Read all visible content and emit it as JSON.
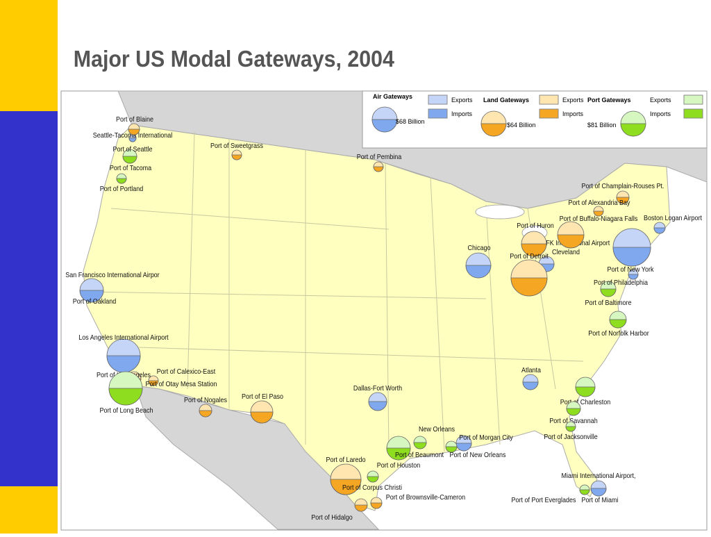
{
  "title": "Major US Modal Gateways, 2004",
  "legend": {
    "groups": [
      {
        "title": "Air Gateways",
        "total": "$68 Billion",
        "exports_label": "Exports",
        "imports_label": "Imports",
        "export_color": "#c5d5f7",
        "import_color": "#7fa8ef",
        "gateways": [
          "Seattle-Tacoma International",
          "Boston Logan Airport",
          "JFK International Airport",
          "Cleveland",
          "Chicago",
          "San Francisco International Airpor",
          "Los Angeles International Airport",
          "Dallas-Fort Worth",
          "Atlanta",
          "Port of Morgan City",
          "Miami International Airport,",
          "Port of New York"
        ]
      },
      {
        "title": "Land Gateways",
        "total": "$64 Billion",
        "exports_label": "Exports",
        "imports_label": "Imports",
        "export_color": "#ffe6b0",
        "import_color": "#f5a623",
        "gateways": [
          "Port of Blaine",
          "Port of Sweetgrass",
          "Port of Pembina",
          "Port of Champlain-Rouses Pt.",
          "Port of Alexandria Bay",
          "Port of Buffalo-Niagara Falls",
          "Port of Huron",
          "Port of Detroit",
          "Port of Calexico-East",
          "Port of Los Angeles",
          "Port of Otay Mesa Station",
          "Port of Nogales",
          "Port of El Paso",
          "Port of Laredo",
          "Port of Brownsville-Cameron",
          "Port of Hidalgo"
        ]
      },
      {
        "title": "Port Gateways",
        "total": "$81 Billion",
        "exports_label": "Exports",
        "imports_label": "Imports",
        "export_color": "#d6f7c0",
        "import_color": "#8fdd1f",
        "gateways": [
          "Port of Seattle",
          "Port of Tacoma",
          "Port of Portland",
          "Port of Oakland",
          "Port of Philadelphia",
          "Port of Baltimore",
          "Port of Norfolk Harbor",
          "Port of Long Beach",
          "Port of Charleston",
          "Port of Savannah",
          "Port of Jacksonville",
          "New Orleans",
          "Port of Beaumont",
          "Port of New Orleans",
          "Port of Houston",
          "Port of Corpus Christi",
          "Port of Port Everglades",
          "Port of Miami"
        ]
      }
    ]
  }
}
